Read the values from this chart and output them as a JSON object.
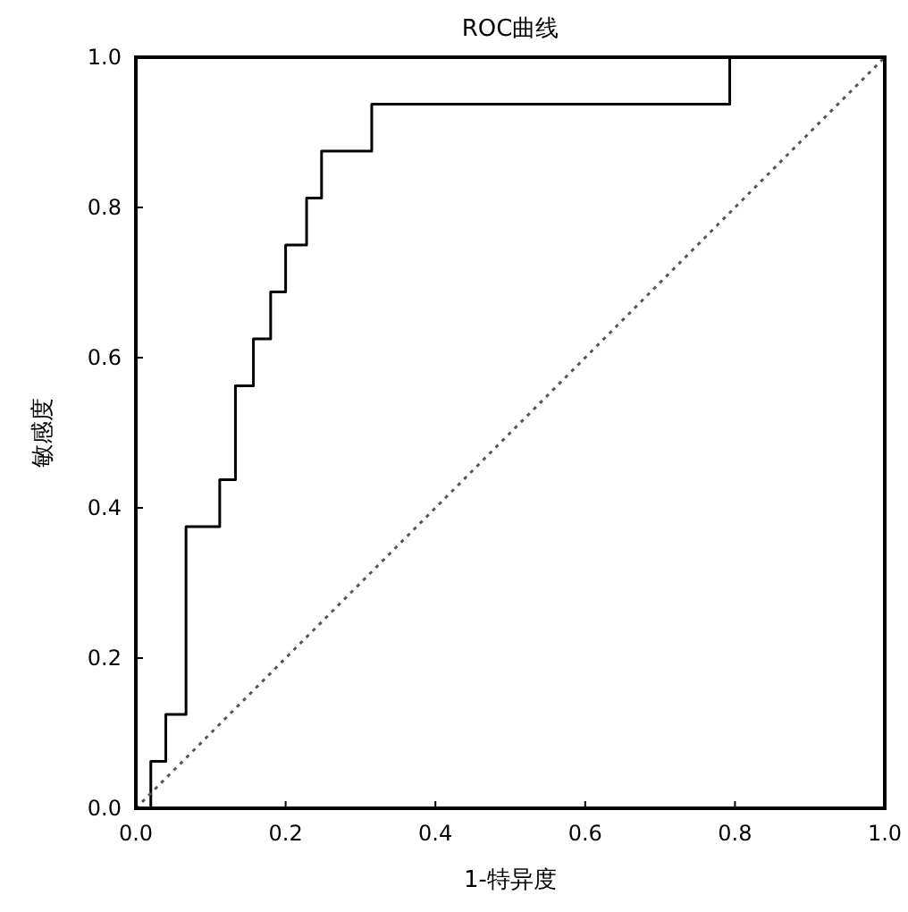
{
  "chart_data": {
    "type": "line",
    "title": "ROC曲线",
    "xlabel": "1-特异度",
    "ylabel": "敏感度",
    "xlim": [
      0,
      1
    ],
    "ylim": [
      0,
      1
    ],
    "xticks": [
      {
        "value": 0,
        "label": "0.0"
      },
      0.2,
      0.4,
      0.6,
      0.8,
      {
        "value": 1,
        "label": "1.0"
      }
    ],
    "yticks": [
      {
        "value": 0,
        "label": "0.0"
      },
      0.2,
      0.4,
      0.6,
      0.8,
      {
        "value": 1,
        "label": "1.0"
      }
    ],
    "grid": false,
    "marker": "none",
    "series": [
      {
        "color": "#000000",
        "line_style": "solid",
        "x": [
          0,
          0.02,
          0.02,
          0.04,
          0.04,
          0.067,
          0.067,
          0.112,
          0.112,
          0.133,
          0.133,
          0.157,
          0.157,
          0.18,
          0.18,
          0.2,
          0.2,
          0.228,
          0.228,
          0.248,
          0.248,
          0.315,
          0.315,
          0.793,
          0.793,
          1.0
        ],
        "values": [
          0,
          0,
          0.0625,
          0.0625,
          0.125,
          0.125,
          0.375,
          0.375,
          0.4375,
          0.4375,
          0.5625,
          0.5625,
          0.625,
          0.625,
          0.6875,
          0.6875,
          0.75,
          0.75,
          0.8125,
          0.8125,
          0.875,
          0.875,
          0.9375,
          0.9375,
          1.0,
          1.0
        ]
      },
      {
        "color": "#555555",
        "line_style": "dotted",
        "x": [
          0,
          1
        ],
        "values": [
          0,
          1
        ]
      }
    ]
  }
}
